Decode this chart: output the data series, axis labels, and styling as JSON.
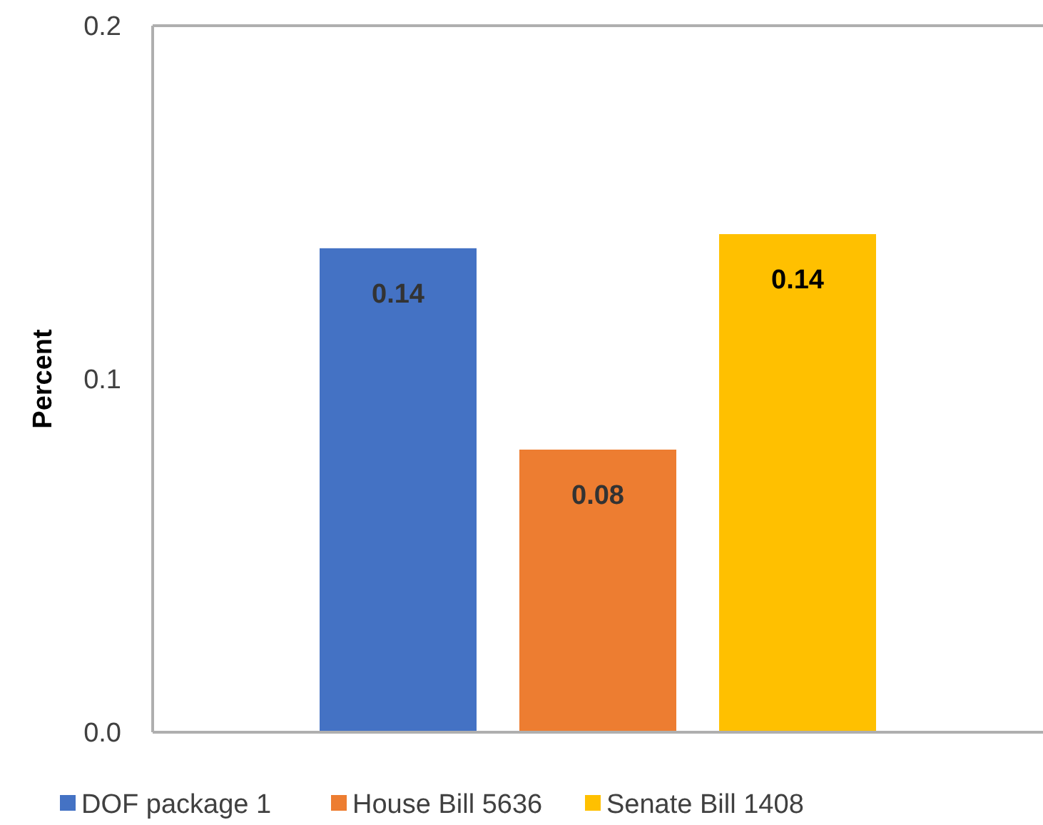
{
  "chart_data": {
    "type": "bar",
    "ylabel": "Percent",
    "categories": [
      null
    ],
    "series": [
      {
        "name": "DOF package 1",
        "color": "#4472c4",
        "values": [
          0.137
        ],
        "value_labels": [
          "0.14"
        ]
      },
      {
        "name": "House Bill 5636",
        "color": "#ed7d31",
        "values": [
          0.08
        ],
        "value_labels": [
          "0.08"
        ]
      },
      {
        "name": "Senate Bill 1408",
        "color": "#ffc000",
        "values": [
          0.141
        ],
        "value_labels": [
          "0.14"
        ]
      }
    ],
    "ylim": [
      0,
      0.2
    ],
    "yticks": [
      {
        "value": 0,
        "label": "0.0"
      },
      {
        "value": 0.1,
        "label": "0.1"
      },
      {
        "value": 0.2,
        "label": "0.2"
      }
    ],
    "legend": "bottom"
  }
}
